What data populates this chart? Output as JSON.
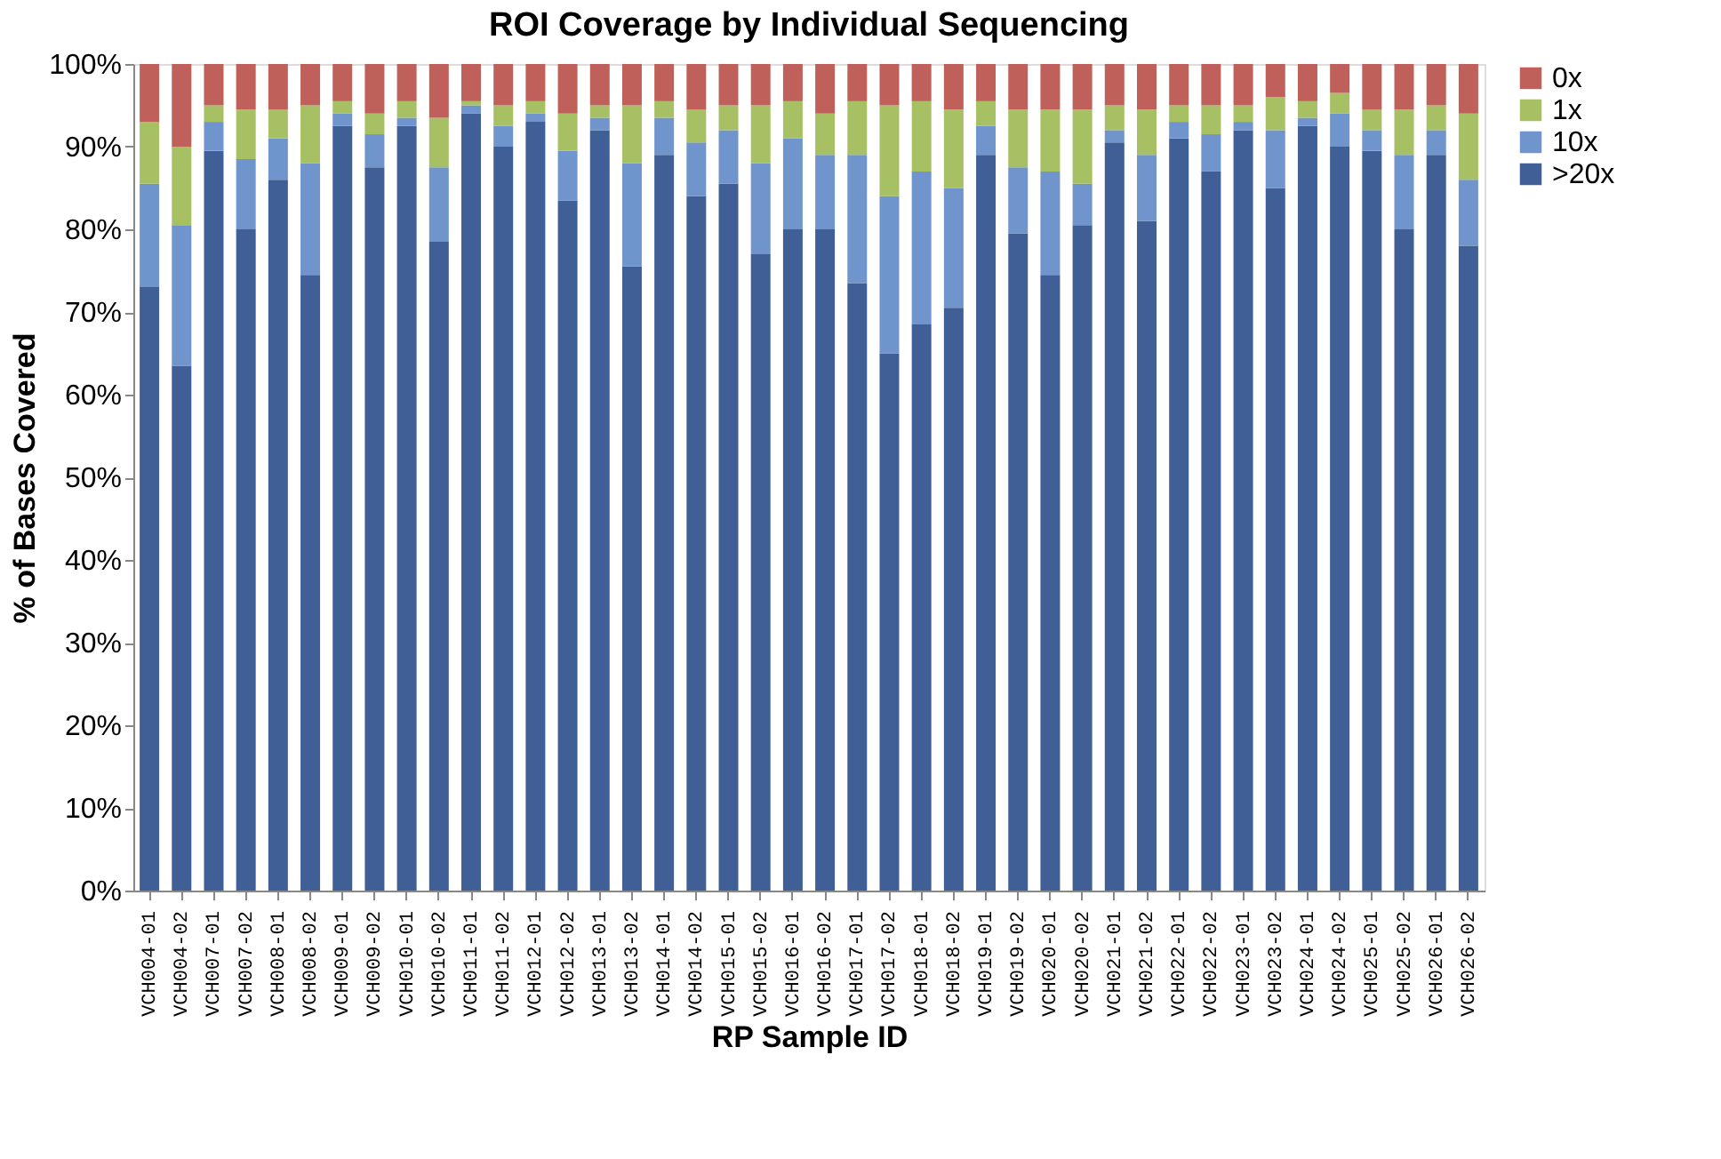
{
  "chart_data": {
    "type": "bar",
    "stacked": true,
    "title": "ROI Coverage by Individual Sequencing",
    "xlabel": "RP Sample ID",
    "ylabel": "% of Bases Covered",
    "categories": [
      "VCH004-01",
      "VCH004-02",
      "VCH007-01",
      "VCH007-02",
      "VCH008-01",
      "VCH008-02",
      "VCH009-01",
      "VCH009-02",
      "VCH010-01",
      "VCH010-02",
      "VCH011-01",
      "VCH011-02",
      "VCH012-01",
      "VCH012-02",
      "VCH013-01",
      "VCH013-02",
      "VCH014-01",
      "VCH014-02",
      "VCH015-01",
      "VCH015-02",
      "VCH016-01",
      "VCH016-02",
      "VCH017-01",
      "VCH017-02",
      "VCH018-01",
      "VCH018-02",
      "VCH019-01",
      "VCH019-02",
      "VCH020-01",
      "VCH020-02",
      "VCH021-01",
      "VCH021-02",
      "VCH022-01",
      "VCH022-02",
      "VCH023-01",
      "VCH023-02",
      "VCH024-01",
      "VCH024-02",
      "VCH025-01",
      "VCH025-02",
      "VCH026-01",
      "VCH026-02"
    ],
    "series": [
      {
        "name": ">20x",
        "color": "#3f5f96",
        "values": [
          73,
          63.5,
          89.5,
          80,
          86,
          74.5,
          92.5,
          87.5,
          92.5,
          78.5,
          94,
          90,
          93,
          83.5,
          92,
          75.5,
          89,
          84,
          85.5,
          77,
          80,
          80,
          73.5,
          65,
          68.5,
          70.5,
          89,
          79.5,
          74.5,
          80.5,
          90.5,
          81,
          91,
          87,
          92,
          85,
          92.5,
          90,
          89.5,
          80,
          89,
          78
        ]
      },
      {
        "name": "10x",
        "color": "#7094cc",
        "values": [
          12.5,
          17,
          3.5,
          8.5,
          5,
          13.5,
          1.5,
          4,
          1,
          9,
          1,
          2.5,
          1,
          6,
          1.5,
          12.5,
          4.5,
          6.5,
          6.5,
          11,
          11,
          9,
          15.5,
          19,
          18.5,
          14.5,
          3.5,
          8,
          12.5,
          5,
          1.5,
          8,
          2,
          4.5,
          1,
          7,
          1,
          4,
          2.5,
          9,
          3,
          8
        ]
      },
      {
        "name": "1x",
        "color": "#a7c063",
        "values": [
          7.5,
          9.5,
          2,
          6,
          3.5,
          7,
          1.5,
          2.5,
          2,
          6,
          0.5,
          2.5,
          1.5,
          4.5,
          1.5,
          7,
          2,
          4,
          3,
          7,
          4.5,
          5,
          6.5,
          11,
          8.5,
          9.5,
          3,
          7,
          7.5,
          9,
          3,
          5.5,
          2,
          3.5,
          2,
          4,
          2,
          2.5,
          2.5,
          5.5,
          3,
          8
        ]
      },
      {
        "name": "0x",
        "color": "#c0605a",
        "values": [
          7,
          10,
          5,
          5.5,
          5.5,
          5,
          4.5,
          6,
          4.5,
          6.5,
          4.5,
          5,
          4.5,
          6,
          5,
          5,
          4.5,
          5.5,
          5,
          5,
          4.5,
          6,
          4.5,
          5,
          4.5,
          5.5,
          4.5,
          5.5,
          5.5,
          5.5,
          5,
          5.5,
          5,
          5,
          5,
          4,
          4.5,
          3.5,
          5.5,
          5.5,
          5,
          6
        ]
      }
    ],
    "ylim": [
      0,
      100
    ],
    "yticks": [
      {
        "value": 0,
        "label": "0%"
      },
      {
        "value": 10,
        "label": "10%"
      },
      {
        "value": 20,
        "label": "20%"
      },
      {
        "value": 30,
        "label": "30%"
      },
      {
        "value": 40,
        "label": "40%"
      },
      {
        "value": 50,
        "label": "50%"
      },
      {
        "value": 60,
        "label": "60%"
      },
      {
        "value": 70,
        "label": "70%"
      },
      {
        "value": 80,
        "label": "80%"
      },
      {
        "value": 90,
        "label": "90%"
      },
      {
        "value": 100,
        "label": "100%"
      }
    ],
    "grid": false,
    "legend": "right"
  }
}
